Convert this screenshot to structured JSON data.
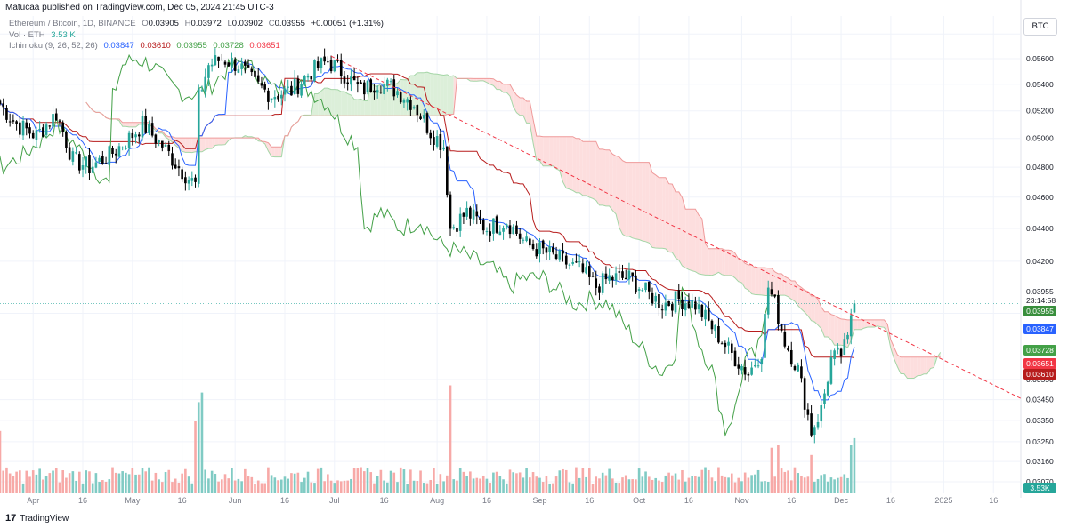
{
  "header": {
    "published_line": "Matucaa published on TradingView.com, Dec 05, 2024 21:45 UTC-3",
    "symbol": "Ethereum / Bitcoin, 1D, BINANCE",
    "ohlc": {
      "o_label": "O",
      "o": "0.03905",
      "h_label": "H",
      "h": "0.03972",
      "l_label": "L",
      "l": "0.03902",
      "c_label": "C",
      "c": "0.03955",
      "change": "+0.00051 (+1.31%)"
    },
    "volume": {
      "name": "Vol · ETH",
      "value": "3.53 K"
    },
    "ichimoku": {
      "name": "Ichimoku (9, 26, 52, 26)",
      "values": [
        "0.03847",
        "0.03610",
        "0.03955",
        "0.03728",
        "0.03651"
      ],
      "colors": [
        "#2962ff",
        "#b71c1c",
        "#43a047",
        "#43a047",
        "#f23645"
      ]
    }
  },
  "currency_button": "BTC",
  "footer": {
    "logo_text": "TradingView",
    "logo_mark": "17"
  },
  "price_tags": {
    "last_price": "0.03955",
    "countdown": "23:14:58",
    "tags": [
      {
        "text": "0.03955",
        "color": "#388e3c"
      },
      {
        "text": "0.03847",
        "color": "#2962ff"
      },
      {
        "text": "0.03728",
        "color": "#43a047"
      },
      {
        "text": "0.03651",
        "color": "#f23645"
      },
      {
        "text": "0.03610",
        "color": "#b71c1c"
      }
    ],
    "volume_tag": {
      "text": "3.53K",
      "color": "#26a69a"
    }
  },
  "colors": {
    "up": "#26a69a",
    "down": "#000000",
    "vol_up": "#80cbc4",
    "vol_down": "#f7a9a7",
    "tenkan": "#2962ff",
    "kijun": "#b71c1c",
    "chikou": "#43a047",
    "cloud_bear": "#fddede",
    "cloud_bull": "#dcefd9",
    "trendline": "#f23645",
    "grid": "#f0f3fa"
  },
  "chart_data": {
    "type": "candlestick",
    "scale": "log",
    "ylim": [
      0.0302,
      0.0595
    ],
    "x_range": [
      "2024-03-22",
      "2025-01-24"
    ],
    "grid": true,
    "y_ticks": [
      "0.05800",
      "0.05600",
      "0.05400",
      "0.05200",
      "0.05000",
      "0.04800",
      "0.04600",
      "0.04400",
      "0.04200",
      "0.03900",
      "0.03550",
      "0.03450",
      "0.03350",
      "0.03250",
      "0.03160",
      "0.03070"
    ],
    "x_ticks": [
      {
        "label": "Apr",
        "date": "2024-04-01"
      },
      {
        "label": "16",
        "date": "2024-04-16"
      },
      {
        "label": "May",
        "date": "2024-05-01"
      },
      {
        "label": "16",
        "date": "2024-05-16"
      },
      {
        "label": "Jun",
        "date": "2024-06-01"
      },
      {
        "label": "16",
        "date": "2024-06-16"
      },
      {
        "label": "Jul",
        "date": "2024-07-01"
      },
      {
        "label": "16",
        "date": "2024-07-16"
      },
      {
        "label": "Aug",
        "date": "2024-08-01"
      },
      {
        "label": "16",
        "date": "2024-08-16"
      },
      {
        "label": "Sep",
        "date": "2024-09-01"
      },
      {
        "label": "16",
        "date": "2024-09-16"
      },
      {
        "label": "Oct",
        "date": "2024-10-01"
      },
      {
        "label": "16",
        "date": "2024-10-16"
      },
      {
        "label": "Nov",
        "date": "2024-11-01"
      },
      {
        "label": "16",
        "date": "2024-11-16"
      },
      {
        "label": "Dec",
        "date": "2024-12-01"
      },
      {
        "label": "16",
        "date": "2024-12-16"
      },
      {
        "label": "2025",
        "date": "2025-01-01"
      },
      {
        "label": "16",
        "date": "2025-01-16"
      }
    ],
    "close_anchors": [
      [
        "2024-03-22",
        0.0525
      ],
      [
        "2024-03-27",
        0.051
      ],
      [
        "2024-04-02",
        0.0502
      ],
      [
        "2024-04-08",
        0.0518
      ],
      [
        "2024-04-13",
        0.0485
      ],
      [
        "2024-04-18",
        0.048
      ],
      [
        "2024-04-24",
        0.0488
      ],
      [
        "2024-04-30",
        0.05
      ],
      [
        "2024-05-04",
        0.051
      ],
      [
        "2024-05-10",
        0.0495
      ],
      [
        "2024-05-15",
        0.048
      ],
      [
        "2024-05-20",
        0.0468
      ],
      [
        "2024-05-21",
        0.053
      ],
      [
        "2024-05-24",
        0.0555
      ],
      [
        "2024-05-28",
        0.056
      ],
      [
        "2024-06-02",
        0.0555
      ],
      [
        "2024-06-07",
        0.054
      ],
      [
        "2024-06-12",
        0.0532
      ],
      [
        "2024-06-18",
        0.0535
      ],
      [
        "2024-06-24",
        0.055
      ],
      [
        "2024-06-29",
        0.0558
      ],
      [
        "2024-07-04",
        0.0548
      ],
      [
        "2024-07-09",
        0.0535
      ],
      [
        "2024-07-14",
        0.0542
      ],
      [
        "2024-07-20",
        0.0535
      ],
      [
        "2024-07-25",
        0.0525
      ],
      [
        "2024-07-30",
        0.0505
      ],
      [
        "2024-08-03",
        0.0495
      ],
      [
        "2024-08-05",
        0.044
      ],
      [
        "2024-08-10",
        0.045
      ],
      [
        "2024-08-16",
        0.044
      ],
      [
        "2024-08-22",
        0.0445
      ],
      [
        "2024-08-28",
        0.043
      ],
      [
        "2024-09-03",
        0.0425
      ],
      [
        "2024-09-08",
        0.042
      ],
      [
        "2024-09-13",
        0.0415
      ],
      [
        "2024-09-18",
        0.0405
      ],
      [
        "2024-09-22",
        0.041
      ],
      [
        "2024-09-28",
        0.041
      ],
      [
        "2024-10-03",
        0.0402
      ],
      [
        "2024-10-08",
        0.0395
      ],
      [
        "2024-10-13",
        0.0398
      ],
      [
        "2024-10-18",
        0.0395
      ],
      [
        "2024-10-24",
        0.038
      ],
      [
        "2024-10-29",
        0.0368
      ],
      [
        "2024-11-03",
        0.0358
      ],
      [
        "2024-11-07",
        0.037
      ],
      [
        "2024-11-09",
        0.0405
      ],
      [
        "2024-11-11",
        0.0395
      ],
      [
        "2024-11-14",
        0.0375
      ],
      [
        "2024-11-18",
        0.036
      ],
      [
        "2024-11-22",
        0.033
      ],
      [
        "2024-11-25",
        0.034
      ],
      [
        "2024-11-28",
        0.0365
      ],
      [
        "2024-12-01",
        0.0368
      ],
      [
        "2024-12-03",
        0.0375
      ],
      [
        "2024-12-04",
        0.039
      ],
      [
        "2024-12-05",
        0.03955
      ]
    ],
    "last_candle": {
      "date": "2024-12-05",
      "open": 0.03905,
      "high": 0.03972,
      "low": 0.03902,
      "close": 0.03955
    },
    "ichimoku_params": {
      "tenkan": 9,
      "kijun": 26,
      "senkou_b": 52,
      "displacement": 26
    },
    "trendline": {
      "start": [
        "2024-06-30",
        0.0562
      ],
      "end": [
        "2025-01-25",
        0.0345
      ]
    },
    "volume_spikes": [
      [
        "2024-03-22",
        2.6
      ],
      [
        "2024-05-20",
        3.0
      ],
      [
        "2024-05-21",
        3.8
      ],
      [
        "2024-05-22",
        4.2
      ],
      [
        "2024-08-05",
        4.5
      ],
      [
        "2024-11-10",
        1.9
      ],
      [
        "2024-11-12",
        2.0
      ],
      [
        "2024-11-22",
        1.6
      ],
      [
        "2024-12-04",
        2.0
      ],
      [
        "2024-12-05",
        2.3
      ]
    ]
  }
}
